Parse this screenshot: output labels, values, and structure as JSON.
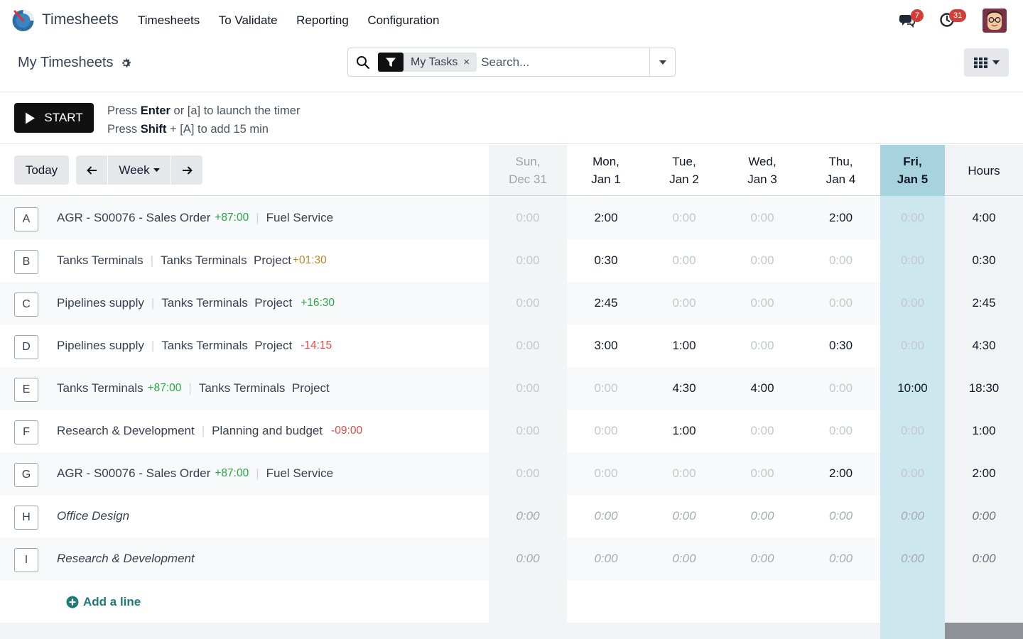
{
  "navbar": {
    "app_name": "Timesheets",
    "menu": [
      "Timesheets",
      "To Validate",
      "Reporting",
      "Configuration"
    ],
    "messages_count": "7",
    "activities_count": "31"
  },
  "control": {
    "title": "My Timesheets",
    "facet_label": "My Tasks",
    "facet_remove": "×",
    "search_placeholder": "Search..."
  },
  "timer": {
    "start_label": "START",
    "help_line1": {
      "pre": "Press ",
      "key": "Enter",
      "post": " or [a] to launch the timer"
    },
    "help_line2": {
      "pre": "Press ",
      "key": "Shift",
      "post": " + [A] to add 15 min"
    }
  },
  "grid": {
    "today_label": "Today",
    "range_label": "Week",
    "days": [
      {
        "l1": "Sun,",
        "l2": "Dec 31"
      },
      {
        "l1": "Mon,",
        "l2": "Jan 1"
      },
      {
        "l1": "Tue,",
        "l2": "Jan 2"
      },
      {
        "l1": "Wed,",
        "l2": "Jan 3"
      },
      {
        "l1": "Thu,",
        "l2": "Jan 4"
      },
      {
        "l1": "Fri,",
        "l2": "Jan 5"
      }
    ],
    "hours_label": "Hours",
    "rows": [
      {
        "key": "A",
        "name": "AGR - S00076 - Sales Order",
        "name_delta": "+87:00",
        "name_delta_type": "pos",
        "task": "Fuel Service",
        "task_delta": "",
        "task_delta_type": "",
        "cells": [
          "0:00",
          "2:00",
          "0:00",
          "0:00",
          "2:00",
          "0:00"
        ],
        "total": "4:00"
      },
      {
        "key": "B",
        "name": "Tanks Terminals",
        "name_delta": "",
        "name_delta_type": "",
        "task": "Tanks Terminals  Project",
        "task_delta": "+01:30",
        "task_delta_type": "warn",
        "cells": [
          "0:00",
          "0:30",
          "0:00",
          "0:00",
          "0:00",
          "0:00"
        ],
        "total": "0:30"
      },
      {
        "key": "C",
        "name": "Pipelines supply",
        "name_delta": "",
        "name_delta_type": "",
        "task": "Tanks Terminals  Project",
        "task_delta": "+16:30",
        "task_delta_type": "pos",
        "cells": [
          "0:00",
          "2:45",
          "0:00",
          "0:00",
          "0:00",
          "0:00"
        ],
        "total": "2:45"
      },
      {
        "key": "D",
        "name": "Pipelines supply",
        "name_delta": "",
        "name_delta_type": "",
        "task": "Tanks Terminals  Project",
        "task_delta": "-14:15",
        "task_delta_type": "neg",
        "cells": [
          "0:00",
          "3:00",
          "1:00",
          "0:00",
          "0:30",
          "0:00"
        ],
        "total": "4:30"
      },
      {
        "key": "E",
        "name": "Tanks Terminals",
        "name_delta": "+87:00",
        "name_delta_type": "pos",
        "task": "Tanks Terminals  Project",
        "task_delta": "",
        "task_delta_type": "",
        "cells": [
          "0:00",
          "0:00",
          "4:30",
          "4:00",
          "0:00",
          "10:00"
        ],
        "total": "18:30"
      },
      {
        "key": "F",
        "name": "Research & Development",
        "name_delta": "",
        "name_delta_type": "",
        "task": "Planning and budget",
        "task_delta": "-09:00",
        "task_delta_type": "neg",
        "cells": [
          "0:00",
          "0:00",
          "1:00",
          "0:00",
          "0:00",
          "0:00"
        ],
        "total": "1:00"
      },
      {
        "key": "G",
        "name": "AGR - S00076 - Sales Order",
        "name_delta": "+87:00",
        "name_delta_type": "pos",
        "task": "Fuel Service",
        "task_delta": "",
        "task_delta_type": "",
        "cells": [
          "0:00",
          "0:00",
          "0:00",
          "0:00",
          "2:00",
          "0:00"
        ],
        "total": "2:00"
      },
      {
        "key": "H",
        "name": "Office Design",
        "italic": true,
        "task": "",
        "cells": [
          "0:00",
          "0:00",
          "0:00",
          "0:00",
          "0:00",
          "0:00"
        ],
        "total": "0:00"
      },
      {
        "key": "I",
        "name": "Research & Development",
        "italic": true,
        "task": "",
        "cells": [
          "0:00",
          "0:00",
          "0:00",
          "0:00",
          "0:00",
          "0:00"
        ],
        "total": "0:00"
      }
    ],
    "add_line_label": "Add a line"
  },
  "colors": {
    "accent_teal": "#1f7a7a",
    "today_column": "#a7d3df",
    "positive": "#28a745",
    "negative": "#dc4c46",
    "badge": "#d23f3a"
  }
}
